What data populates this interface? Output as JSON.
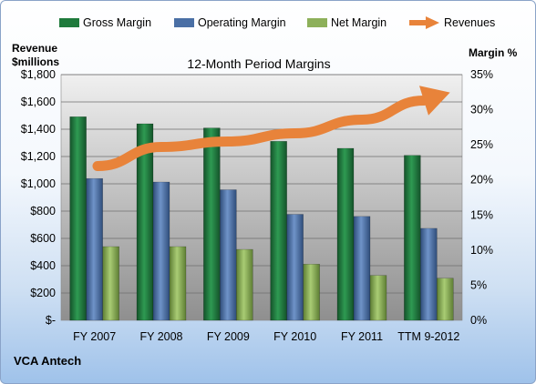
{
  "company": "VCA Antech",
  "chart_data": {
    "type": "bar",
    "title": "12-Month Period Margins",
    "ylabel": "Revenue $millions",
    "ylabel_lines": [
      "Revenue",
      "$millions"
    ],
    "y2label": "Margin %",
    "categories": [
      "FY 2007",
      "FY 2008",
      "FY 2009",
      "FY 2010",
      "FY 2011",
      "TTM 9-2012"
    ],
    "ylim": [
      0,
      1800
    ],
    "y_ticks": [
      0,
      200,
      400,
      600,
      800,
      1000,
      1200,
      1400,
      1600,
      1800
    ],
    "y_tick_labels": [
      "$-",
      "$200",
      "$400",
      "$600",
      "$800",
      "$1,000",
      "$1,200",
      "$1,400",
      "$1,600",
      "$1,800"
    ],
    "y2lim": [
      0,
      35
    ],
    "y2_ticks": [
      0,
      5,
      10,
      15,
      20,
      25,
      30,
      35
    ],
    "y2_tick_labels": [
      "0%",
      "5%",
      "10%",
      "15%",
      "20%",
      "25%",
      "30%",
      "35%"
    ],
    "grid": true,
    "legend_position": "top",
    "series": [
      {
        "name": "Gross Margin",
        "axis": "right",
        "color": "#1f7a3c",
        "values": [
          29.0,
          28.0,
          27.4,
          25.5,
          24.5,
          23.5
        ]
      },
      {
        "name": "Operating Margin",
        "axis": "right",
        "color": "#4a6fa5",
        "values": [
          20.2,
          19.7,
          18.6,
          15.1,
          14.8,
          13.1
        ]
      },
      {
        "name": "Net Margin",
        "axis": "right",
        "color": "#8db05a",
        "values": [
          10.5,
          10.5,
          10.1,
          8.0,
          6.4,
          6.0
        ]
      },
      {
        "name": "Revenues",
        "axis": "left",
        "type": "trend-arrow",
        "color": "#e8833a",
        "values": [
          1130,
          1270,
          1310,
          1370,
          1470,
          1610
        ]
      }
    ]
  }
}
